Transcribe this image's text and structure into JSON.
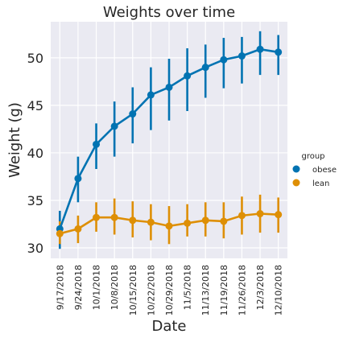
{
  "chart_data": {
    "type": "line",
    "title": "Weights over time",
    "xlabel": "Date",
    "ylabel": "Weight (g)",
    "categories": [
      "9/17/2018",
      "9/24/2018",
      "10/1/2018",
      "10/8/2018",
      "10/15/2018",
      "10/22/2018",
      "10/29/2018",
      "11/5/2018",
      "11/13/2018",
      "11/19/2018",
      "11/26/2018",
      "12/3/2018",
      "12/10/2018"
    ],
    "yticks": [
      30,
      35,
      40,
      45,
      50
    ],
    "ylim": [
      28.9,
      53.8
    ],
    "grid": true,
    "legend": {
      "title": "group",
      "placement": "right"
    },
    "series": [
      {
        "name": "obese",
        "color": "#0173b2",
        "values": [
          32.0,
          37.3,
          40.9,
          42.8,
          44.1,
          46.1,
          46.9,
          48.1,
          49.0,
          49.8,
          50.2,
          50.9,
          50.6
        ],
        "ci_low": [
          29.9,
          34.8,
          38.3,
          39.6,
          41.0,
          42.4,
          43.4,
          44.4,
          45.8,
          46.8,
          47.3,
          48.2,
          48.2
        ],
        "ci_high": [
          33.9,
          39.6,
          43.1,
          45.4,
          46.9,
          49.0,
          49.9,
          51.0,
          51.4,
          52.1,
          52.2,
          52.8,
          52.4
        ]
      },
      {
        "name": "lean",
        "color": "#de8f05",
        "values": [
          31.5,
          32.0,
          33.2,
          33.2,
          32.9,
          32.7,
          32.3,
          32.6,
          32.9,
          32.8,
          33.4,
          33.6,
          33.5
        ],
        "ci_low": [
          30.4,
          30.5,
          31.7,
          31.4,
          31.1,
          30.8,
          30.4,
          31.2,
          31.2,
          31.0,
          31.4,
          31.6,
          31.6
        ],
        "ci_high": [
          32.8,
          33.4,
          34.8,
          35.2,
          34.9,
          34.6,
          34.4,
          34.6,
          34.8,
          34.8,
          35.4,
          35.6,
          35.3
        ]
      }
    ]
  }
}
